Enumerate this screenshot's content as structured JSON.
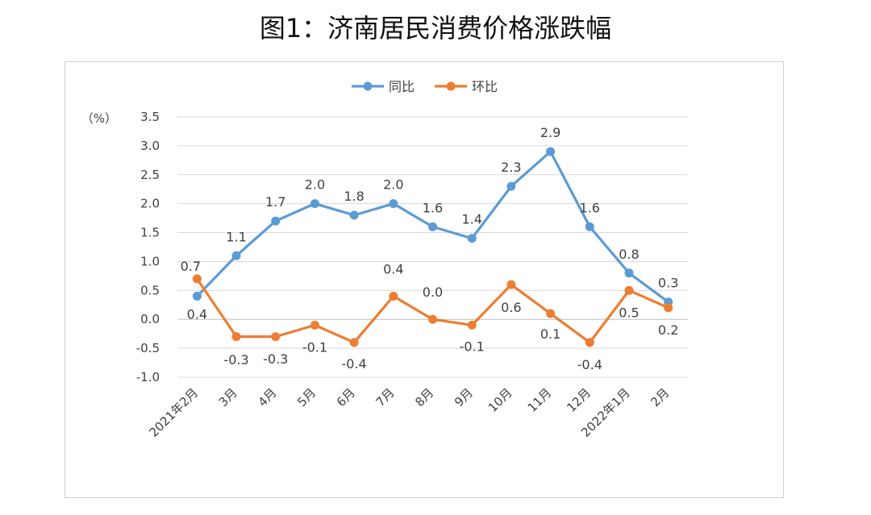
{
  "page": {
    "title": "图1：济南居民消费价格涨跌幅"
  },
  "chart_data": {
    "type": "line",
    "ylabel": "（%）",
    "ylim": [
      -1.0,
      3.5
    ],
    "ytick_step": 0.5,
    "ytick_labels": [
      "-1.0",
      "-0.5",
      "0.0",
      "0.5",
      "1.0",
      "1.5",
      "2.0",
      "2.5",
      "3.0",
      "3.5"
    ],
    "categories": [
      "2021年2月",
      "3月",
      "4月",
      "5月",
      "6月",
      "7月",
      "8月",
      "9月",
      "10月",
      "11月",
      "12月",
      "2022年1月",
      "2月"
    ],
    "grid": true,
    "legend_position": "top-center",
    "series": [
      {
        "name": "同比",
        "color": "#5b9bd5",
        "values": [
          0.4,
          1.1,
          1.7,
          2.0,
          1.8,
          2.0,
          1.6,
          1.4,
          2.3,
          2.9,
          1.6,
          0.8,
          0.3
        ],
        "labels": [
          "0.4",
          "1.1",
          "1.7",
          "2.0",
          "1.8",
          "2.0",
          "1.6",
          "1.4",
          "2.3",
          "2.9",
          "1.6",
          "0.8",
          "0.3"
        ]
      },
      {
        "name": "环比",
        "color": "#ed7d31",
        "values": [
          0.7,
          -0.3,
          -0.3,
          -0.1,
          -0.4,
          0.4,
          0.0,
          -0.1,
          0.6,
          0.1,
          -0.4,
          0.5,
          0.2
        ],
        "labels": [
          "0.7",
          "-0.3",
          "-0.3",
          "-0.1",
          "-0.4",
          "0.4",
          "0.0",
          "-0.1",
          "0.6",
          "0.1",
          "-0.4",
          "0.5",
          "0.2"
        ]
      }
    ]
  }
}
